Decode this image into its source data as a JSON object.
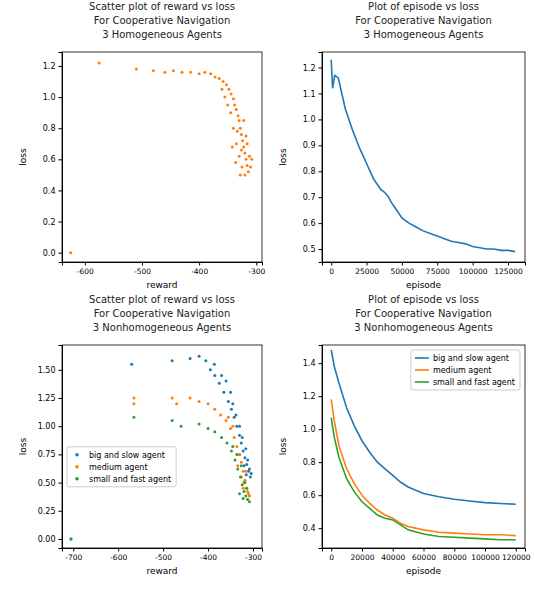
{
  "chart_data": [
    {
      "type": "scatter",
      "title": "Scatter plot of reward vs loss\nFor Cooperative Navigation\n3 Homogeneous Agents",
      "x_label": "reward",
      "y_label": "loss",
      "xlim": [
        -640,
        -290
      ],
      "ylim": [
        -0.06,
        1.29
      ],
      "xticks": [
        -600,
        -500,
        -400,
        -300
      ],
      "yticks": [
        {
          "value": 0,
          "label": "0.0"
        },
        0.2,
        0.4,
        0.6,
        0.8,
        {
          "value": 1,
          "label": "1.0"
        },
        1.2
      ],
      "series": [
        {
          "color": "#ff7f0e",
          "x": [
            -625,
            -575,
            -510,
            -480,
            -460,
            -445,
            -430,
            -415,
            -400,
            -390,
            -380,
            -372,
            -365,
            -358,
            -352,
            -348,
            -344,
            -340,
            -338,
            -335,
            -332,
            -330,
            -328,
            -326,
            -324,
            -322,
            -320,
            -318,
            -316,
            -314,
            -330,
            -325,
            -335,
            -340,
            -345,
            -318,
            -312,
            -310,
            -320,
            -328,
            -336,
            -342,
            -350,
            -355,
            -360,
            -322,
            -316,
            -308,
            -333,
            -326
          ],
          "values": [
            0.0,
            1.22,
            1.18,
            1.17,
            1.16,
            1.17,
            1.16,
            1.16,
            1.15,
            1.16,
            1.15,
            1.13,
            1.12,
            1.1,
            1.08,
            1.05,
            1.02,
            0.99,
            0.95,
            0.92,
            0.88,
            0.85,
            0.8,
            0.76,
            0.72,
            0.68,
            0.64,
            0.6,
            0.56,
            0.52,
            0.62,
            0.55,
            0.7,
            0.8,
            0.9,
            0.75,
            0.62,
            0.55,
            0.5,
            0.5,
            0.58,
            0.68,
            0.95,
            1.0,
            1.05,
            0.85,
            0.7,
            0.6,
            0.78,
            0.66
          ]
        }
      ]
    },
    {
      "type": "line",
      "title": "Plot of episode vs loss\nFor Cooperative Navigation\n3 Homogeneous Agents",
      "x_label": "episode",
      "y_label": "loss",
      "xlim": [
        -6500,
        137000
      ],
      "ylim": [
        0.45,
        1.26
      ],
      "xticks": [
        0,
        25000,
        50000,
        75000,
        100000,
        125000
      ],
      "yticks": [
        0.5,
        0.6,
        0.7,
        0.8,
        0.9,
        {
          "value": 1,
          "label": "1.0"
        },
        1.1,
        1.2
      ],
      "x": [
        0,
        1000,
        2500,
        5000,
        7500,
        10000,
        15000,
        20000,
        25000,
        30000,
        35000,
        37500,
        40000,
        42500,
        45000,
        50000,
        55000,
        60000,
        65000,
        70000,
        75000,
        80000,
        85000,
        90000,
        95000,
        100000,
        105000,
        110000,
        115000,
        120000,
        125000,
        130000
      ],
      "series": [
        {
          "color": "#1f77b4",
          "values": [
            1.23,
            1.12,
            1.17,
            1.16,
            1.1,
            1.04,
            0.96,
            0.89,
            0.83,
            0.77,
            0.73,
            0.72,
            0.705,
            0.68,
            0.66,
            0.62,
            0.6,
            0.585,
            0.57,
            0.56,
            0.55,
            0.54,
            0.53,
            0.525,
            0.52,
            0.51,
            0.505,
            0.5,
            0.5,
            0.495,
            0.495,
            0.49
          ]
        }
      ]
    },
    {
      "type": "scatter",
      "title": "Scatter plot of reward vs loss\nFor Cooperative Navigation\n3 Nonhomogeneous Agents",
      "x_label": "reward",
      "y_label": "loss",
      "xlim": [
        -725,
        -280
      ],
      "ylim": [
        -0.08,
        1.72
      ],
      "xticks": [
        -700,
        -600,
        -500,
        -400,
        -300
      ],
      "yticks": [
        {
          "value": 0,
          "label": "0.00"
        },
        0.25,
        {
          "value": 0.5,
          "label": "0.50"
        },
        0.75,
        {
          "value": 1,
          "label": "1.00"
        },
        1.25,
        {
          "value": 1.5,
          "label": "1.50"
        }
      ],
      "legend": "center left",
      "series": [
        {
          "name": "big and slow agent",
          "color": "#1f77b4",
          "x": [
            -705,
            -570,
            -480,
            -440,
            -420,
            -405,
            -395,
            -385,
            -375,
            -365,
            -355,
            -348,
            -342,
            -336,
            -330,
            -326,
            -322,
            -318,
            -314,
            -310,
            -306,
            -320,
            -312,
            -316,
            -324,
            -330,
            -338,
            -345,
            -308,
            -304,
            -315,
            -330,
            -350,
            -360,
            -370,
            -386
          ],
          "values": [
            0.0,
            1.55,
            1.58,
            1.6,
            1.62,
            1.58,
            1.5,
            1.45,
            1.38,
            1.3,
            1.22,
            1.15,
            1.08,
            1.0,
            0.92,
            0.85,
            0.78,
            0.72,
            0.66,
            0.6,
            0.55,
            0.65,
            0.7,
            0.8,
            0.9,
            1.0,
            1.1,
            1.2,
            0.62,
            0.58,
            0.57,
            0.75,
            1.3,
            1.4,
            1.45,
            1.55
          ]
        },
        {
          "name": "medium agent",
          "color": "#ff7f0e",
          "x": [
            -565,
            -565,
            -480,
            -470,
            -440,
            -420,
            -400,
            -385,
            -372,
            -360,
            -350,
            -342,
            -336,
            -330,
            -326,
            -322,
            -318,
            -314,
            -310,
            -320,
            -326,
            -334,
            -312,
            -316,
            -345,
            -355,
            -308,
            -322
          ],
          "values": [
            1.25,
            1.2,
            1.25,
            1.2,
            1.25,
            1.22,
            1.2,
            1.15,
            1.1,
            1.05,
            0.98,
            0.9,
            0.82,
            0.75,
            0.68,
            0.6,
            0.52,
            0.45,
            0.4,
            0.5,
            0.55,
            0.65,
            0.42,
            0.6,
            1.0,
            1.08,
            0.38,
            0.45
          ]
        },
        {
          "name": "small and fast agent",
          "color": "#2ca02c",
          "x": [
            -705,
            -565,
            -480,
            -460,
            -420,
            -400,
            -385,
            -370,
            -358,
            -348,
            -340,
            -334,
            -328,
            -324,
            -320,
            -316,
            -312,
            -322,
            -330,
            -318,
            -326,
            -336,
            -308,
            -314,
            -345
          ],
          "values": [
            0.0,
            1.08,
            1.05,
            1.0,
            1.02,
            0.98,
            0.95,
            0.9,
            0.85,
            0.78,
            0.7,
            0.62,
            0.55,
            0.48,
            0.42,
            0.38,
            0.35,
            0.36,
            0.4,
            0.5,
            0.65,
            0.75,
            0.33,
            0.45,
            0.82
          ]
        }
      ]
    },
    {
      "type": "line",
      "title": "Plot of episode vs loss\nFor Cooperative Navigation\n3 Nonhomogeneous Agents",
      "x_label": "episode",
      "y_label": "loss",
      "xlim": [
        -6000,
        126000
      ],
      "ylim": [
        0.28,
        1.51
      ],
      "xticks": [
        0,
        20000,
        40000,
        60000,
        80000,
        100000,
        120000
      ],
      "yticks": [
        0.4,
        0.6,
        0.8,
        {
          "value": 1,
          "label": "1.0"
        },
        1.2,
        1.4
      ],
      "legend": "upper right",
      "x": [
        0,
        2000,
        5000,
        10000,
        15000,
        20000,
        25000,
        30000,
        35000,
        40000,
        45000,
        50000,
        60000,
        70000,
        80000,
        90000,
        100000,
        110000,
        120000
      ],
      "series": [
        {
          "name": "big and slow agent",
          "color": "#1f77b4",
          "values": [
            1.48,
            1.38,
            1.28,
            1.13,
            1.02,
            0.93,
            0.86,
            0.8,
            0.76,
            0.72,
            0.68,
            0.65,
            0.61,
            0.59,
            0.575,
            0.565,
            0.555,
            0.55,
            0.545
          ]
        },
        {
          "name": "medium agent",
          "color": "#ff7f0e",
          "values": [
            1.18,
            1.05,
            0.9,
            0.76,
            0.67,
            0.6,
            0.55,
            0.51,
            0.48,
            0.46,
            0.43,
            0.41,
            0.39,
            0.375,
            0.37,
            0.365,
            0.36,
            0.36,
            0.355
          ]
        },
        {
          "name": "small and fast agent",
          "color": "#2ca02c",
          "values": [
            1.07,
            0.95,
            0.83,
            0.7,
            0.62,
            0.56,
            0.52,
            0.48,
            0.46,
            0.45,
            0.42,
            0.39,
            0.365,
            0.35,
            0.345,
            0.34,
            0.335,
            0.33,
            0.33
          ]
        }
      ]
    }
  ]
}
